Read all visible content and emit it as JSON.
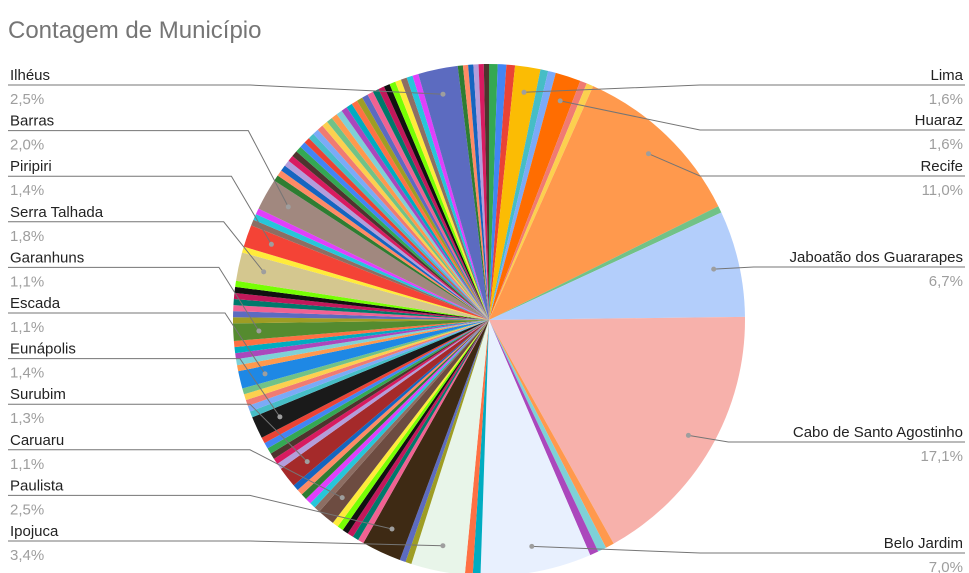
{
  "chart_data": {
    "type": "pie",
    "title": "Contagem de Município",
    "labeled_slices": [
      {
        "label": "Ilhéus",
        "value": 2.5,
        "value_text": "2,5%",
        "color": "#5c6bc0",
        "side": "left"
      },
      {
        "label": "Barras",
        "value": 2.0,
        "value_text": "2,0%",
        "color": "#a1887f",
        "side": "left"
      },
      {
        "label": "Piripiri",
        "value": 1.4,
        "value_text": "1,4%",
        "color": "#f44336",
        "side": "left"
      },
      {
        "label": "Serra Talhada",
        "value": 1.8,
        "value_text": "1,8%",
        "color": "#d4c78f",
        "side": "left"
      },
      {
        "label": "Garanhuns",
        "value": 1.1,
        "value_text": "1,1%",
        "color": "#558b2f",
        "side": "left"
      },
      {
        "label": "Escada",
        "value": 1.1,
        "value_text": "1,1%",
        "color": "#1e88e5",
        "side": "left"
      },
      {
        "label": "Eunápolis",
        "value": 1.4,
        "value_text": "1,4%",
        "color": "#1a1a1a",
        "side": "left"
      },
      {
        "label": "Surubim",
        "value": 1.3,
        "value_text": "1,3%",
        "color": "#a52a2a",
        "side": "left"
      },
      {
        "label": "Caruaru",
        "value": 1.1,
        "value_text": "1,1%",
        "color": "#6d4c41",
        "side": "left"
      },
      {
        "label": "Paulista",
        "value": 2.5,
        "value_text": "2,5%",
        "color": "#3e2a14",
        "side": "left"
      },
      {
        "label": "Ipojuca",
        "value": 3.4,
        "value_text": "3,4%",
        "color": "#e8f5e9",
        "side": "left"
      },
      {
        "label": "Lima",
        "value": 1.6,
        "value_text": "1,6%",
        "color": "#fbbc04",
        "side": "right"
      },
      {
        "label": "Huaraz",
        "value": 1.6,
        "value_text": "1,6%",
        "color": "#ff6d01",
        "side": "right"
      },
      {
        "label": "Recife",
        "value": 11.0,
        "value_text": "11,0%",
        "color": "#ff994d",
        "side": "right"
      },
      {
        "label": "Jaboatão dos Guararapes",
        "value": 6.7,
        "value_text": "6,7%",
        "color": "#b3cefb",
        "side": "right"
      },
      {
        "label": "Cabo de Santo Agostinho",
        "value": 17.1,
        "value_text": "17,1%",
        "color": "#f7b1ab",
        "side": "right"
      },
      {
        "label": "Belo Jardim",
        "value": 7.0,
        "value_text": "7,0%",
        "color": "#e8f0fe",
        "side": "right"
      }
    ],
    "unlabeled_colors": [
      "#34a853",
      "#4285f4",
      "#ea4335",
      "#46bdc6",
      "#7baaf7",
      "#f07b72",
      "#fcd04f",
      "#71c287",
      "#ff994d",
      "#7ed1d7",
      "#ab47bc",
      "#00acc1",
      "#ff7043",
      "#9e9d24",
      "#5c6bc0",
      "#f06292",
      "#00796b",
      "#c2185b",
      "#111111",
      "#76ff03",
      "#ffeb3b",
      "#8d6e63",
      "#26c6da",
      "#e040fb",
      "#2e7d32",
      "#ff8a65",
      "#1565c0",
      "#b39ddb",
      "#d81b60",
      "#4e342e"
    ]
  }
}
